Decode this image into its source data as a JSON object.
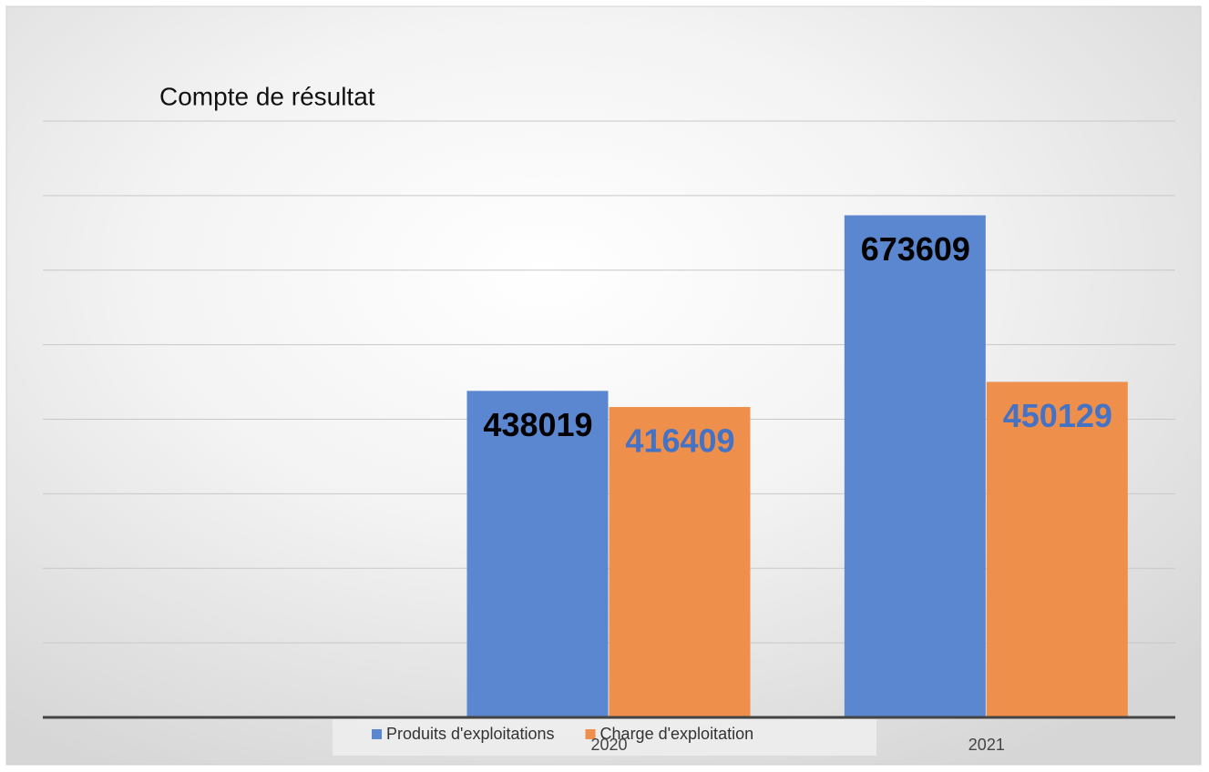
{
  "chart_data": {
    "type": "bar",
    "title": "Compte de résultat",
    "categories": [
      null,
      "2020",
      "2021"
    ],
    "series": [
      {
        "name": "Produits d'exploitations",
        "color": "#5b86d0",
        "label_color": "#000000",
        "values": [
          null,
          438019,
          673609
        ]
      },
      {
        "name": "Charge d'exploitation",
        "color": "#ee8f4c",
        "label_color": "#4472c4",
        "values": [
          null,
          416409,
          450129
        ]
      }
    ],
    "ylim": [
      0,
      800000
    ],
    "yticks": [
      0,
      100000,
      200000,
      300000,
      400000,
      500000,
      600000,
      700000,
      800000
    ],
    "grid": true,
    "legend": "bottom"
  }
}
